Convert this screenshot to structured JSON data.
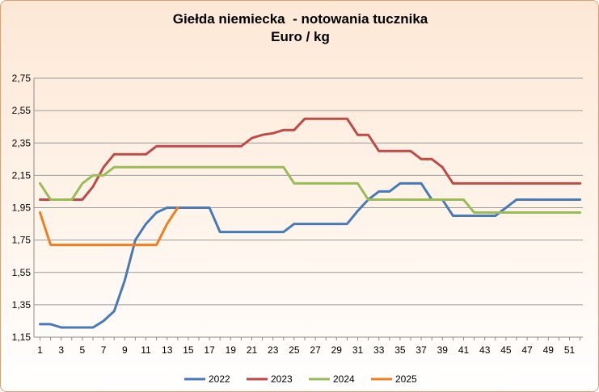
{
  "chart_data": {
    "type": "line",
    "title": "Giełda niemiecka  - notowania tucznika",
    "subtitle": "Euro / kg",
    "xlabel": "",
    "ylabel": "",
    "ylim": [
      1.15,
      2.75
    ],
    "xlim": [
      1,
      52
    ],
    "y_ticks": [
      "1,15",
      "1,35",
      "1,55",
      "1,75",
      "1,95",
      "2,15",
      "2,35",
      "2,55",
      "2,75"
    ],
    "y_tick_values": [
      1.15,
      1.35,
      1.55,
      1.75,
      1.95,
      2.15,
      2.35,
      2.55,
      2.75
    ],
    "x_ticks": [
      "1",
      "3",
      "5",
      "7",
      "9",
      "11",
      "13",
      "15",
      "17",
      "19",
      "21",
      "23",
      "25",
      "27",
      "29",
      "31",
      "33",
      "35",
      "37",
      "39",
      "41",
      "43",
      "45",
      "47",
      "49",
      "51"
    ],
    "grid": "horizontal",
    "legend_position": "bottom",
    "series": [
      {
        "name": "2022",
        "color": "#4a7ab5",
        "x": [
          1,
          2,
          3,
          4,
          5,
          6,
          7,
          8,
          9,
          10,
          11,
          12,
          13,
          14,
          15,
          16,
          17,
          18,
          19,
          20,
          21,
          22,
          23,
          24,
          25,
          26,
          27,
          28,
          29,
          30,
          31,
          32,
          33,
          34,
          35,
          36,
          37,
          38,
          39,
          40,
          41,
          42,
          43,
          44,
          45,
          46,
          47,
          48,
          49,
          50,
          51,
          52
        ],
        "values": [
          1.23,
          1.23,
          1.21,
          1.21,
          1.21,
          1.21,
          1.25,
          1.31,
          1.5,
          1.75,
          1.85,
          1.92,
          1.95,
          1.95,
          1.95,
          1.95,
          1.95,
          1.8,
          1.8,
          1.8,
          1.8,
          1.8,
          1.8,
          1.8,
          1.85,
          1.85,
          1.85,
          1.85,
          1.85,
          1.85,
          1.93,
          2.0,
          2.05,
          2.05,
          2.1,
          2.1,
          2.1,
          2.0,
          2.0,
          1.9,
          1.9,
          1.9,
          1.9,
          1.9,
          1.95,
          2.0,
          2.0,
          2.0,
          2.0,
          2.0,
          2.0,
          2.0
        ]
      },
      {
        "name": "2023",
        "color": "#be4b48",
        "x": [
          1,
          2,
          3,
          4,
          5,
          6,
          7,
          8,
          9,
          10,
          11,
          12,
          13,
          14,
          15,
          16,
          17,
          18,
          19,
          20,
          21,
          22,
          23,
          24,
          25,
          26,
          27,
          28,
          29,
          30,
          31,
          32,
          33,
          34,
          35,
          36,
          37,
          38,
          39,
          40,
          41,
          42,
          43,
          44,
          45,
          46,
          47,
          48,
          49,
          50,
          51,
          52
        ],
        "values": [
          2.0,
          2.0,
          2.0,
          2.0,
          2.0,
          2.08,
          2.2,
          2.28,
          2.28,
          2.28,
          2.28,
          2.33,
          2.33,
          2.33,
          2.33,
          2.33,
          2.33,
          2.33,
          2.33,
          2.33,
          2.38,
          2.4,
          2.41,
          2.43,
          2.43,
          2.5,
          2.5,
          2.5,
          2.5,
          2.5,
          2.4,
          2.4,
          2.3,
          2.3,
          2.3,
          2.3,
          2.25,
          2.25,
          2.2,
          2.1,
          2.1,
          2.1,
          2.1,
          2.1,
          2.1,
          2.1,
          2.1,
          2.1,
          2.1,
          2.1,
          2.1,
          2.1
        ]
      },
      {
        "name": "2024",
        "color": "#9bbb59",
        "x": [
          1,
          2,
          3,
          4,
          5,
          6,
          7,
          8,
          9,
          10,
          11,
          12,
          13,
          14,
          15,
          16,
          17,
          18,
          19,
          20,
          21,
          22,
          23,
          24,
          25,
          26,
          27,
          28,
          29,
          30,
          31,
          32,
          33,
          34,
          35,
          36,
          37,
          38,
          39,
          40,
          41,
          42,
          43,
          44,
          45,
          46,
          47,
          48,
          49,
          50,
          51,
          52
        ],
        "values": [
          2.1,
          2.0,
          2.0,
          2.0,
          2.1,
          2.15,
          2.15,
          2.2,
          2.2,
          2.2,
          2.2,
          2.2,
          2.2,
          2.2,
          2.2,
          2.2,
          2.2,
          2.2,
          2.2,
          2.2,
          2.2,
          2.2,
          2.2,
          2.2,
          2.1,
          2.1,
          2.1,
          2.1,
          2.1,
          2.1,
          2.1,
          2.0,
          2.0,
          2.0,
          2.0,
          2.0,
          2.0,
          2.0,
          2.0,
          2.0,
          2.0,
          1.92,
          1.92,
          1.92,
          1.92,
          1.92,
          1.92,
          1.92,
          1.92,
          1.92,
          1.92,
          1.92
        ]
      },
      {
        "name": "2025",
        "color": "#f07f22",
        "x": [
          1,
          2,
          3,
          4,
          5,
          6,
          7,
          8,
          9,
          10,
          11,
          12,
          13,
          14
        ],
        "values": [
          1.92,
          1.72,
          1.72,
          1.72,
          1.72,
          1.72,
          1.72,
          1.72,
          1.72,
          1.72,
          1.72,
          1.72,
          1.85,
          1.95
        ]
      }
    ]
  }
}
